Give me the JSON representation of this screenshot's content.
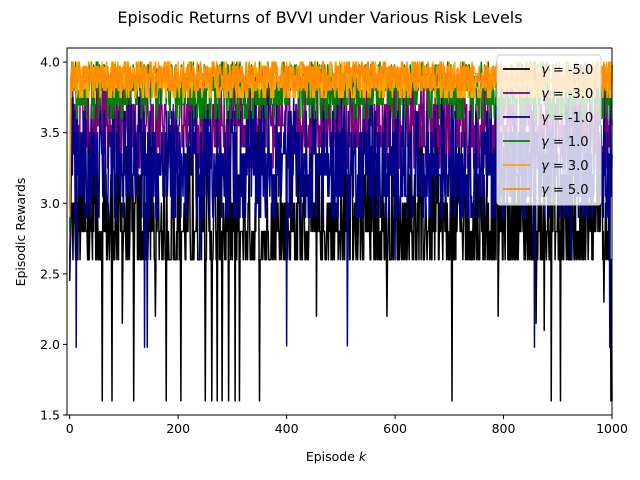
{
  "chart_data": {
    "type": "line",
    "title": "Episodic Returns of BVVI under Various Risk Levels",
    "xlabel_prefix": "Episode ",
    "xlabel_var": "k",
    "ylabel": "Episodic Rewards",
    "xlim": [
      -5,
      1000
    ],
    "ylim": [
      1.5,
      4.1
    ],
    "xticks": [
      0,
      200,
      400,
      600,
      800,
      1000
    ],
    "xtick_labels": [
      "0",
      "200",
      "400",
      "600",
      "800",
      "1000"
    ],
    "yticks": [
      1.5,
      2.0,
      2.5,
      3.0,
      3.5,
      4.0
    ],
    "ytick_labels": [
      "1.5",
      "2.0",
      "2.5",
      "3.0",
      "3.5",
      "4.0"
    ],
    "grid": false,
    "legend_position": "top-right",
    "series": [
      {
        "name": "-5.0",
        "color": "#000000",
        "early": [
          2.45,
          2.65,
          2.8
        ],
        "levels": [
          2.6,
          2.8,
          3.0,
          3.2,
          3.4,
          3.55
        ],
        "weights": [
          0.34,
          0.26,
          0.2,
          0.12,
          0.06,
          0.02
        ],
        "high_levels": [
          3.6,
          3.75
        ],
        "high_prob": 0.02,
        "dips": [
          {
            "x": 60,
            "y": 1.6
          },
          {
            "x": 78,
            "y": 1.6
          },
          {
            "x": 118,
            "y": 1.6
          },
          {
            "x": 178,
            "y": 1.6
          },
          {
            "x": 205,
            "y": 1.6
          },
          {
            "x": 250,
            "y": 1.6
          },
          {
            "x": 262,
            "y": 1.6
          },
          {
            "x": 272,
            "y": 1.6
          },
          {
            "x": 281,
            "y": 1.6
          },
          {
            "x": 293,
            "y": 1.6
          },
          {
            "x": 305,
            "y": 1.6
          },
          {
            "x": 313,
            "y": 1.6
          },
          {
            "x": 350,
            "y": 1.6
          },
          {
            "x": 705,
            "y": 1.6
          },
          {
            "x": 888,
            "y": 1.6
          },
          {
            "x": 905,
            "y": 1.6
          },
          {
            "x": 998,
            "y": 1.6
          },
          {
            "x": 1000,
            "y": 1.6
          },
          {
            "x": 97,
            "y": 2.15
          },
          {
            "x": 158,
            "y": 2.2
          },
          {
            "x": 455,
            "y": 2.2
          },
          {
            "x": 585,
            "y": 2.2
          },
          {
            "x": 790,
            "y": 2.2
          },
          {
            "x": 860,
            "y": 2.15
          },
          {
            "x": 875,
            "y": 2.1
          },
          {
            "x": 985,
            "y": 2.3
          }
        ]
      },
      {
        "name": "-3.0",
        "color": "#7b007b",
        "early": [
          2.6,
          2.8,
          3.0
        ],
        "levels": [
          3.25,
          3.4,
          3.55,
          3.7,
          3.85
        ],
        "weights": [
          0.15,
          0.25,
          0.3,
          0.2,
          0.1
        ],
        "high_levels": [
          3.95
        ],
        "high_prob": 0.05,
        "dips": []
      },
      {
        "name": "-1.0",
        "color": "#00008b",
        "early": [
          2.5,
          2.75,
          2.9
        ],
        "levels": [
          2.9,
          3.05,
          3.2,
          3.35,
          3.5,
          3.65
        ],
        "weights": [
          0.12,
          0.18,
          0.22,
          0.22,
          0.16,
          0.1
        ],
        "high_levels": [
          3.75
        ],
        "high_prob": 0.03,
        "dips": [
          {
            "x": 12,
            "y": 1.98
          },
          {
            "x": 138,
            "y": 1.98
          },
          {
            "x": 143,
            "y": 1.98
          },
          {
            "x": 400,
            "y": 1.99
          },
          {
            "x": 512,
            "y": 1.99
          },
          {
            "x": 857,
            "y": 1.98
          },
          {
            "x": 996,
            "y": 1.98
          },
          {
            "x": 240,
            "y": 2.6
          },
          {
            "x": 600,
            "y": 2.6
          },
          {
            "x": 925,
            "y": 2.6
          }
        ]
      },
      {
        "name": "1.0",
        "color": "#008000",
        "early": [
          2.8,
          3.2,
          3.6
        ],
        "levels": [
          3.6,
          3.7,
          3.8,
          3.9,
          3.98
        ],
        "weights": [
          0.12,
          0.22,
          0.3,
          0.24,
          0.12
        ],
        "high_levels": [
          4.0
        ],
        "high_prob": 0.05,
        "dips": []
      },
      {
        "name": "3.0",
        "color": "#ffa500",
        "early": [
          2.9,
          3.3,
          3.8
        ],
        "levels": [
          3.75,
          3.82,
          3.9,
          3.96
        ],
        "weights": [
          0.2,
          0.3,
          0.3,
          0.2
        ],
        "high_levels": [
          4.0
        ],
        "high_prob": 0.06,
        "dips": []
      },
      {
        "name": "5.0",
        "color": "#ff8c00",
        "early": [
          2.95,
          3.4,
          3.9
        ],
        "levels": [
          3.8,
          3.86,
          3.92,
          3.97
        ],
        "weights": [
          0.2,
          0.3,
          0.3,
          0.2
        ],
        "high_levels": [
          4.0
        ],
        "high_prob": 0.06,
        "dips": []
      }
    ]
  }
}
